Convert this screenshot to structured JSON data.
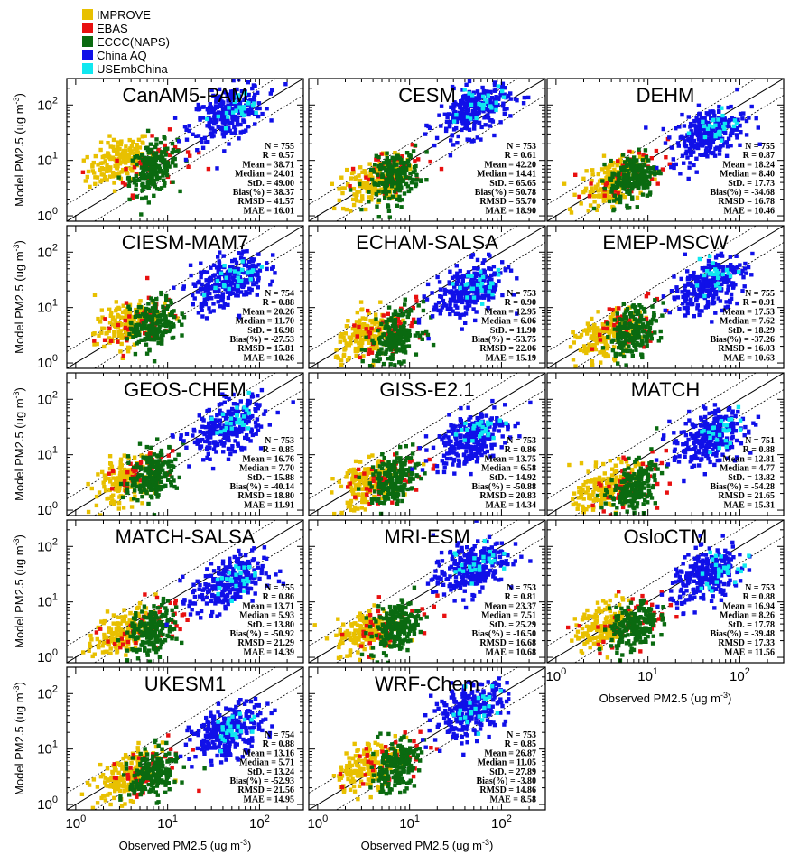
{
  "legend": [
    {
      "label": "IMPROVE",
      "color": "#e8c000"
    },
    {
      "label": "EBAS",
      "color": "#e81010"
    },
    {
      "label": "ECCC(NAPS)",
      "color": "#0a6a10"
    },
    {
      "label": "China AQ",
      "color": "#1010e8"
    },
    {
      "label": "USEmbChina",
      "color": "#10e8f0"
    }
  ],
  "axes": {
    "xlabel": "Observed PM2.5 (ug m",
    "xlabel_sup": "-3",
    "xlabel_end": ")",
    "ylabel": "Model PM2.5 (ug m",
    "ylabel_sup": "-3",
    "ylabel_end": ")",
    "y_ticks": [
      {
        "base": "10",
        "exp": "0"
      },
      {
        "base": "10",
        "exp": "1"
      },
      {
        "base": "10",
        "exp": "2"
      }
    ],
    "x_ticks": [
      {
        "base": "10",
        "exp": "0"
      },
      {
        "base": "10",
        "exp": "1"
      },
      {
        "base": "10",
        "exp": "2"
      }
    ]
  },
  "chart_data": {
    "type": "scatter",
    "scale": "log-log",
    "xlabel": "Observed PM2.5 (ug m-3)",
    "ylabel": "Model PM2.5 (ug m-3)",
    "xlim": [
      0.8,
      300
    ],
    "ylim": [
      0.8,
      300
    ],
    "reference_lines": [
      "1:1",
      "2:1",
      "1:2"
    ],
    "series": [
      "IMPROVE",
      "EBAS",
      "ECCC(NAPS)",
      "China AQ",
      "USEmbChina"
    ],
    "panels": [
      {
        "model": "CanAM5-PAM",
        "stats": [
          "N = 755",
          "R = 0.57",
          "Mean = 38.71",
          "Median = 24.01",
          "StD. = 49.00",
          "Bias(%) = 38.37",
          "RMSD = 41.57",
          "MAE = 16.01"
        ],
        "clusters": {
          "IMPROVE": [
            3.0,
            10
          ],
          "EBAS": [
            7,
            9
          ],
          "ECCC(NAPS)": [
            7,
            7
          ],
          "China AQ": [
            45,
            70
          ],
          "USEmbChina": [
            60,
            80
          ]
        }
      },
      {
        "model": "CESM",
        "stats": [
          "N = 753",
          "R = 0.61",
          "Mean = 42.20",
          "Median = 14.41",
          "StD. = 65.65",
          "Bias(%) = 50.78",
          "RMSD = 55.70",
          "MAE = 18.90"
        ],
        "clusters": {
          "IMPROVE": [
            4,
            4
          ],
          "EBAS": [
            7,
            6
          ],
          "ECCC(NAPS)": [
            7,
            5
          ],
          "China AQ": [
            50,
            80
          ],
          "USEmbChina": [
            60,
            100
          ]
        }
      },
      {
        "model": "DEHM",
        "stats": [
          "N = 755",
          "R = 0.87",
          "Mean = 18.24",
          "Median = 8.40",
          "StD. = 17.73",
          "Bias(%) = -34.68",
          "RMSD = 16.78",
          "MAE = 10.46"
        ],
        "clusters": {
          "IMPROVE": [
            4,
            4
          ],
          "EBAS": [
            6,
            5
          ],
          "ECCC(NAPS)": [
            7,
            5
          ],
          "China AQ": [
            45,
            30
          ],
          "USEmbChina": [
            55,
            40
          ]
        }
      },
      {
        "model": "CIESM-MAM7",
        "stats": [
          "N = 754",
          "R = 0.88",
          "Mean = 20.26",
          "Median = 11.70",
          "StD. = 16.98",
          "Bias(%) = -27.53",
          "RMSD = 15.81",
          "MAE = 10.26"
        ],
        "clusters": {
          "IMPROVE": [
            3.5,
            5
          ],
          "EBAS": [
            5,
            5
          ],
          "ECCC(NAPS)": [
            7,
            5
          ],
          "China AQ": [
            45,
            30
          ],
          "USEmbChina": [
            55,
            35
          ]
        }
      },
      {
        "model": "ECHAM-SALSA",
        "stats": [
          "N = 753",
          "R = 0.90",
          "Mean = 12.95",
          "Median = 6.06",
          "StD. = 11.90",
          "Bias(%) = -53.75",
          "RMSD = 22.06",
          "MAE = 15.19"
        ],
        "clusters": {
          "IMPROVE": [
            3.5,
            3
          ],
          "EBAS": [
            6,
            4
          ],
          "ECCC(NAPS)": [
            7,
            3
          ],
          "China AQ": [
            45,
            20
          ],
          "USEmbChina": [
            55,
            25
          ]
        }
      },
      {
        "model": "EMEP-MSCW",
        "stats": [
          "N = 755",
          "R = 0.91",
          "Mean = 17.53",
          "Median = 7.62",
          "StD. = 18.29",
          "Bias(%) = -37.26",
          "RMSD = 16.03",
          "MAE = 10.63"
        ],
        "clusters": {
          "IMPROVE": [
            3.5,
            3
          ],
          "EBAS": [
            6,
            5
          ],
          "ECCC(NAPS)": [
            7,
            4
          ],
          "China AQ": [
            45,
            25
          ],
          "USEmbChina": [
            55,
            35
          ]
        }
      },
      {
        "model": "GEOS-CHEM",
        "stats": [
          "N = 753",
          "R = 0.85",
          "Mean = 16.76",
          "Median = 7.70",
          "StD. = 15.88",
          "Bias(%) = -40.14",
          "RMSD = 18.80",
          "MAE = 11.91"
        ],
        "clusters": {
          "IMPROVE": [
            3.5,
            3.5
          ],
          "EBAS": [
            6,
            5
          ],
          "ECCC(NAPS)": [
            7,
            4.5
          ],
          "China AQ": [
            45,
            30
          ],
          "USEmbChina": [
            55,
            35
          ]
        }
      },
      {
        "model": "GISS-E2.1",
        "stats": [
          "N = 753",
          "R = 0.86",
          "Mean = 13.75",
          "Median = 6.58",
          "StD. = 14.92",
          "Bias(%) = -50.88",
          "RMSD = 20.83",
          "MAE = 14.34"
        ],
        "clusters": {
          "IMPROVE": [
            3.5,
            3
          ],
          "EBAS": [
            6,
            4
          ],
          "ECCC(NAPS)": [
            7,
            3.5
          ],
          "China AQ": [
            45,
            20
          ],
          "USEmbChina": [
            55,
            25
          ]
        }
      },
      {
        "model": "MATCH",
        "stats": [
          "N = 751",
          "R = 0.88",
          "Mean = 12.81",
          "Median = 4.77",
          "StD. = 13.82",
          "Bias(%) = -54.28",
          "RMSD = 21.65",
          "MAE = 15.31"
        ],
        "clusters": {
          "IMPROVE": [
            3.5,
            2.5
          ],
          "EBAS": [
            6,
            3
          ],
          "ECCC(NAPS)": [
            7,
            2.5
          ],
          "China AQ": [
            45,
            20
          ],
          "USEmbChina": [
            55,
            25
          ]
        }
      },
      {
        "model": "MATCH-SALSA",
        "stats": [
          "N = 755",
          "R = 0.86",
          "Mean = 13.71",
          "Median = 5.93",
          "StD. = 13.80",
          "Bias(%) = -50.92",
          "RMSD = 21.29",
          "MAE = 14.39"
        ],
        "clusters": {
          "IMPROVE": [
            3.5,
            3
          ],
          "EBAS": [
            6,
            4
          ],
          "ECCC(NAPS)": [
            7,
            3
          ],
          "China AQ": [
            45,
            20
          ],
          "USEmbChina": [
            55,
            25
          ]
        }
      },
      {
        "model": "MRI-ESM",
        "stats": [
          "N = 753",
          "R = 0.81",
          "Mean = 23.37",
          "Median = 7.51",
          "StD. = 25.29",
          "Bias(%) = -16.50",
          "RMSD = 16.68",
          "MAE = 10.68"
        ],
        "clusters": {
          "IMPROVE": [
            3.5,
            3
          ],
          "EBAS": [
            6,
            4
          ],
          "ECCC(NAPS)": [
            7,
            3.5
          ],
          "China AQ": [
            45,
            40
          ],
          "USEmbChina": [
            55,
            50
          ]
        }
      },
      {
        "model": "OsloCTM",
        "stats": [
          "N = 753",
          "R = 0.88",
          "Mean = 16.94",
          "Median = 8.26",
          "StD. = 17.78",
          "Bias(%) = -39.48",
          "RMSD = 17.33",
          "MAE = 11.56"
        ],
        "clusters": {
          "IMPROVE": [
            3.5,
            4
          ],
          "EBAS": [
            6,
            5
          ],
          "ECCC(NAPS)": [
            7,
            3.5
          ],
          "China AQ": [
            45,
            30
          ],
          "USEmbChina": [
            55,
            35
          ]
        }
      },
      {
        "model": "UKESM1",
        "stats": [
          "N = 754",
          "R = 0.88",
          "Mean = 13.16",
          "Median = 5.71",
          "StD. = 13.24",
          "Bias(%) = -52.93",
          "RMSD = 21.56",
          "MAE = 14.95"
        ],
        "clusters": {
          "IMPROVE": [
            3.5,
            3
          ],
          "EBAS": [
            6,
            4
          ],
          "ECCC(NAPS)": [
            7,
            3.5
          ],
          "China AQ": [
            45,
            20
          ],
          "USEmbChina": [
            55,
            25
          ]
        }
      },
      {
        "model": "WRF-Chem",
        "stats": [
          "N = 753",
          "R = 0.85",
          "Mean = 26.87",
          "Median = 11.05",
          "StD. = 27.89",
          "Bias(%) = -3.80",
          "RMSD = 14.86",
          "MAE = 8.58"
        ],
        "clusters": {
          "IMPROVE": [
            3.5,
            5
          ],
          "EBAS": [
            6,
            6
          ],
          "ECCC(NAPS)": [
            7,
            5
          ],
          "China AQ": [
            45,
            50
          ],
          "USEmbChina": [
            55,
            60
          ]
        }
      }
    ]
  }
}
